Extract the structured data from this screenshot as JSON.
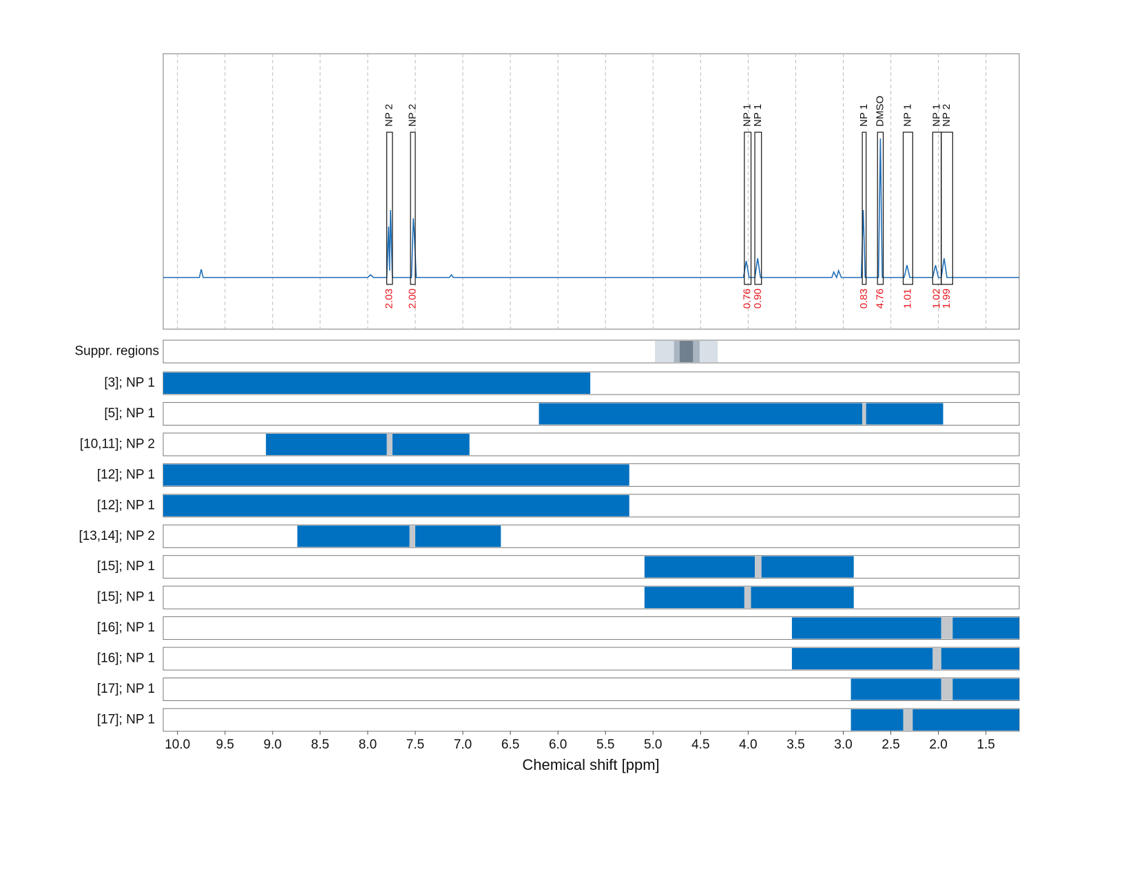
{
  "chart_data": {
    "type": "nmr",
    "xlabel": "Chemical shift [ppm]",
    "xlim": [
      10.15,
      1.15
    ],
    "xticks": [
      {
        "value": 10,
        "label": "10.0"
      },
      9.5,
      {
        "value": 9,
        "label": "9.0"
      },
      8.5,
      {
        "value": 8,
        "label": "8.0"
      },
      7.5,
      {
        "value": 7,
        "label": "7.0"
      },
      6.5,
      {
        "value": 6,
        "label": "6.0"
      },
      5.5,
      {
        "value": 5,
        "label": "5.0"
      },
      4.5,
      {
        "value": 4,
        "label": "4.0"
      },
      3.5,
      {
        "value": 3,
        "label": "3.0"
      },
      2.5,
      {
        "value": 2,
        "label": "2.0"
      },
      1.5
    ],
    "grid": true,
    "spectrum": {
      "color": "#1f6fb8",
      "ylim": [
        -0.375,
        1.625
      ],
      "x": [
        10.15,
        9.77,
        9.75,
        9.73,
        8.0,
        7.97,
        7.94,
        7.8,
        7.78,
        7.77,
        7.76,
        7.74,
        7.54,
        7.52,
        7.51,
        7.49,
        7.14,
        7.12,
        7.1,
        4.05,
        4.02,
        3.99,
        3.93,
        3.9,
        3.87,
        3.12,
        3.1,
        3.07,
        3.05,
        3.02,
        2.81,
        2.79,
        2.77,
        2.63,
        2.61,
        2.59,
        2.36,
        2.33,
        2.3,
        2.06,
        2.03,
        2.0,
        1.97,
        1.94,
        1.91,
        1.15
      ],
      "values": [
        0,
        0,
        0.06,
        0,
        0,
        0.02,
        0,
        0,
        0.37,
        0.05,
        0.49,
        0,
        0,
        0.43,
        0.32,
        0,
        0,
        0.02,
        0,
        0,
        0.12,
        0,
        0,
        0.14,
        0,
        0,
        0.04,
        0,
        0.05,
        0,
        0,
        0.49,
        0,
        0,
        1.01,
        0,
        0,
        0.09,
        0,
        0,
        0.09,
        0,
        0,
        0.14,
        0,
        0
      ]
    },
    "annotations": [
      {
        "label": "NP 2",
        "range": [
          7.8,
          7.74
        ],
        "integral": "2.03"
      },
      {
        "label": "NP 2",
        "range": [
          7.55,
          7.5
        ],
        "integral": "2.00"
      },
      {
        "label": "NP 1",
        "range": [
          4.04,
          3.97
        ],
        "integral": "0.76"
      },
      {
        "label": "NP 1",
        "range": [
          3.93,
          3.86
        ],
        "integral": "0.90"
      },
      {
        "label": "NP 1",
        "range": [
          2.8,
          2.76
        ],
        "integral": "0.83"
      },
      {
        "label": "DMSO",
        "range": [
          2.64,
          2.58
        ],
        "integral": "4.76"
      },
      {
        "label": "NP 1",
        "range": [
          2.37,
          2.27
        ],
        "integral": "1.01"
      },
      {
        "label": "NP 1",
        "range": [
          2.06,
          1.97
        ],
        "integral": "1.02"
      },
      {
        "label": "NP 2",
        "range": [
          1.97,
          1.85
        ],
        "integral": "1.99"
      }
    ],
    "integral_color": "#e8141c",
    "suppression": {
      "label": "Suppr. regions",
      "regions": [
        {
          "range": [
            4.98,
            4.32
          ],
          "color": "#d8dfe6"
        },
        {
          "range": [
            4.78,
            4.51
          ],
          "color": "#a9b6c2"
        },
        {
          "range": [
            4.72,
            4.58
          ],
          "color": "#71808f"
        }
      ]
    },
    "bar_color": "#0070c0",
    "gap_color": "#c3c7cb",
    "rows": [
      {
        "label": "[3]; NP 1",
        "range": [
          10.15,
          5.66
        ]
      },
      {
        "label": "[5]; NP 1",
        "range": [
          6.2,
          1.95
        ],
        "gap": [
          2.8,
          2.76
        ]
      },
      {
        "label": "[10,11]; NP 2",
        "range": [
          9.07,
          6.93
        ],
        "gap": [
          7.8,
          7.74
        ]
      },
      {
        "label": "[12]; NP 1",
        "range": [
          10.15,
          5.25
        ]
      },
      {
        "label": "[12]; NP 1",
        "range": [
          10.15,
          5.25
        ]
      },
      {
        "label": "[13,14]; NP 2",
        "range": [
          8.74,
          6.6
        ],
        "gap": [
          7.56,
          7.5
        ]
      },
      {
        "label": "[15]; NP 1",
        "range": [
          5.09,
          2.89
        ],
        "gap": [
          3.93,
          3.86
        ]
      },
      {
        "label": "[15]; NP 1",
        "range": [
          5.09,
          2.89
        ],
        "gap": [
          4.04,
          3.97
        ]
      },
      {
        "label": "[16]; NP 1",
        "range": [
          3.54,
          1.15
        ],
        "gap": [
          1.97,
          1.85
        ]
      },
      {
        "label": "[16]; NP 1",
        "range": [
          3.54,
          1.15
        ],
        "gap": [
          2.06,
          1.97
        ]
      },
      {
        "label": "[17]; NP 1",
        "range": [
          2.92,
          1.15
        ],
        "gap": [
          1.97,
          1.85
        ]
      },
      {
        "label": "[17]; NP 1",
        "range": [
          2.92,
          1.15
        ],
        "gap": [
          2.37,
          2.27
        ]
      }
    ]
  }
}
